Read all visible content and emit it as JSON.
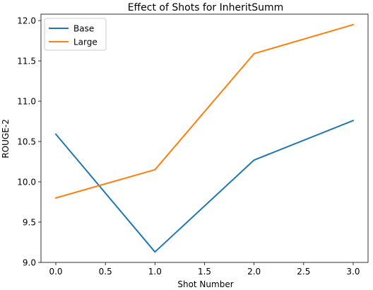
{
  "chart_data": {
    "type": "line",
    "title": "Effect of Shots for InheritSumm",
    "xlabel": "Shot Number",
    "ylabel": "ROUGE-2",
    "x": [
      0,
      1,
      2,
      3
    ],
    "xlim": [
      -0.15,
      3.15
    ],
    "ylim": [
      9.0,
      12.08
    ],
    "xticks": [
      0.0,
      0.5,
      1.0,
      1.5,
      2.0,
      2.5,
      3.0
    ],
    "xtick_labels": [
      "0.0",
      "0.5",
      "1.0",
      "1.5",
      "2.0",
      "2.5",
      "3.0"
    ],
    "yticks": [
      9.0,
      9.5,
      10.0,
      10.5,
      11.0,
      11.5,
      12.0
    ],
    "ytick_labels": [
      "9.0",
      "9.5",
      "10.0",
      "10.5",
      "11.0",
      "11.5",
      "12.0"
    ],
    "grid": false,
    "legend_position": "top-left",
    "series": [
      {
        "name": "Base",
        "color": "#1f77b4",
        "values": [
          10.59,
          9.13,
          10.27,
          10.76
        ]
      },
      {
        "name": "Large",
        "color": "#ff7f0e",
        "values": [
          9.8,
          10.15,
          11.59,
          11.95
        ]
      }
    ]
  }
}
